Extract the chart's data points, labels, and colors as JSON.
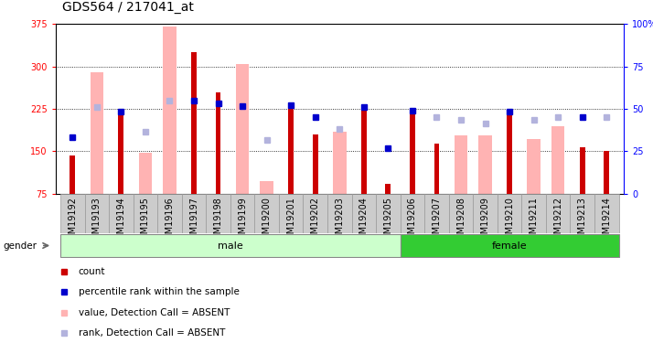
{
  "title": "GDS564 / 217041_at",
  "samples": [
    "GSM19192",
    "GSM19193",
    "GSM19194",
    "GSM19195",
    "GSM19196",
    "GSM19197",
    "GSM19198",
    "GSM19199",
    "GSM19200",
    "GSM19201",
    "GSM19202",
    "GSM19203",
    "GSM19204",
    "GSM19205",
    "GSM19206",
    "GSM19207",
    "GSM19208",
    "GSM19209",
    "GSM19210",
    "GSM19211",
    "GSM19212",
    "GSM19213",
    "GSM19214"
  ],
  "count_values": [
    143,
    null,
    218,
    null,
    null,
    325,
    255,
    null,
    null,
    235,
    180,
    null,
    228,
    93,
    220,
    163,
    null,
    null,
    220,
    null,
    null,
    158,
    150
  ],
  "value_absent": [
    null,
    290,
    null,
    148,
    370,
    null,
    null,
    305,
    97,
    null,
    null,
    185,
    null,
    null,
    null,
    null,
    178,
    178,
    null,
    172,
    195,
    null,
    null
  ],
  "rank_present_val": [
    175,
    null,
    220,
    null,
    null,
    240,
    235,
    230,
    null,
    232,
    210,
    null,
    228,
    155,
    222,
    null,
    null,
    null,
    221,
    null,
    null,
    210,
    null
  ],
  "rank_absent_val": [
    null,
    228,
    null,
    185,
    240,
    null,
    null,
    null,
    170,
    null,
    null,
    190,
    null,
    null,
    null,
    210,
    205,
    200,
    null,
    205,
    210,
    null,
    210
  ],
  "gender": [
    "male",
    "male",
    "male",
    "male",
    "male",
    "male",
    "male",
    "male",
    "male",
    "male",
    "male",
    "male",
    "male",
    "male",
    "female",
    "female",
    "female",
    "female",
    "female",
    "female",
    "female",
    "female",
    "female"
  ],
  "ylim": [
    75,
    375
  ],
  "yticks": [
    75,
    150,
    225,
    300,
    375
  ],
  "y2ticks": [
    0,
    25,
    50,
    75,
    100
  ],
  "y2lim": [
    0,
    100
  ],
  "bar_color": "#cc0000",
  "absent_bar_color": "#ffb3b3",
  "rank_present_color": "#0000cc",
  "rank_absent_color": "#b3b3dd",
  "male_color": "#ccffcc",
  "female_color": "#33cc33",
  "grid_color": "#000000",
  "bg_color": "#ffffff",
  "xticklabel_bg": "#cccccc",
  "title_fontsize": 10,
  "tick_fontsize": 7,
  "legend_fontsize": 7.5
}
